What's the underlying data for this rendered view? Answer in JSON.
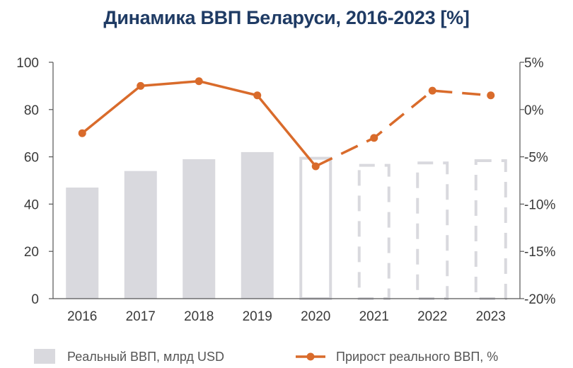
{
  "chart_data": {
    "type": "bar+line",
    "title": "Динамика ВВП Беларуси, 2016-2023 [%]",
    "categories": [
      "2016",
      "2017",
      "2018",
      "2019",
      "2020",
      "2021",
      "2022",
      "2023"
    ],
    "series": [
      {
        "name": "Реальный ВВП, млрд USD",
        "kind": "bar",
        "axis": "left",
        "values": [
          47,
          54,
          59,
          62,
          60,
          57,
          58,
          59
        ],
        "style": [
          "solid",
          "solid",
          "solid",
          "solid",
          "outlined",
          "dashed",
          "dashed",
          "dashed"
        ],
        "color": "#d9d9de"
      },
      {
        "name": "Прирост реального ВВП, %",
        "kind": "line",
        "axis": "right",
        "values": [
          -2.5,
          2.5,
          3.0,
          1.5,
          -6.0,
          -3.0,
          2.0,
          1.5
        ],
        "dashed_from_index": 4,
        "color": "#d96b2b"
      }
    ],
    "y_left": {
      "min": 0,
      "max": 100,
      "ticks": [
        0,
        20,
        40,
        60,
        80,
        100
      ],
      "tick_labels": [
        "0",
        "20",
        "40",
        "60",
        "80",
        "100"
      ]
    },
    "y_right": {
      "min": -20,
      "max": 5,
      "ticks": [
        -20,
        -15,
        -10,
        -5,
        0,
        5
      ],
      "tick_labels": [
        "-20%",
        "-15%",
        "-10%",
        "-5%",
        "0%",
        "5%"
      ]
    },
    "grid": false,
    "legend_position": "bottom"
  }
}
